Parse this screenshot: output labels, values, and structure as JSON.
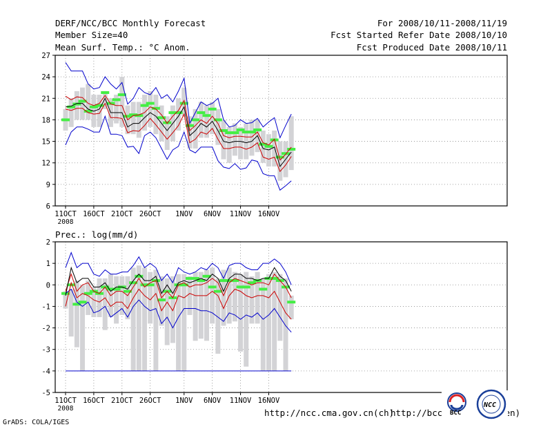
{
  "header": {
    "title": "DERF/NCC/BCC Monthly Forecast",
    "member_size": "Member Size=40",
    "variable": "Mean Surf. Temp.: °C Anom.",
    "period": "For 2008/10/11-2008/11/19",
    "started": "Fcst Started Refer Date 2008/10/10",
    "produced": "Fcst Produced Date 2008/10/11"
  },
  "footer": {
    "grads": "GrADS: COLA/IGES",
    "url1": "http://ncc.cma.gov.cn(ch)",
    "url2": "http://bcc.cma.gov.cn(en)",
    "logo_bcc": "BCC",
    "logo_ncc": "NCC"
  },
  "colors": {
    "envelope": "#0000cc",
    "spread": "#cc0000",
    "mean": "#000000",
    "box": "#d3d3d6",
    "median": "#44ee44",
    "grid": "#888888"
  },
  "chart_data": [
    {
      "type": "box",
      "title": "Mean Surf. Temp.: °C Anom.",
      "xlabel": "",
      "ylabel": "",
      "xlim": [
        1,
        40
      ],
      "ylim": [
        6,
        27
      ],
      "yticks": [
        6,
        9,
        12,
        15,
        18,
        21,
        24,
        27
      ],
      "xticks": [
        {
          "x": 1,
          "label": "11OCT"
        },
        {
          "x": 6,
          "label": "16OCT"
        },
        {
          "x": 11,
          "label": "21OCT"
        },
        {
          "x": 16,
          "label": "26OCT"
        },
        {
          "x": 22,
          "label": "1NOV"
        },
        {
          "x": 27,
          "label": "6NOV"
        },
        {
          "x": 32,
          "label": "11NOV"
        },
        {
          "x": 37,
          "label": "16NOV"
        }
      ],
      "year_label": "2008",
      "grid": "dotted",
      "max": [
        26,
        24.8,
        24.8,
        24.8,
        23,
        22.3,
        22.5,
        24,
        23,
        22.3,
        23.2,
        20.2,
        21,
        22.5,
        21.8,
        21.5,
        22.5,
        21,
        21.5,
        20.5,
        22,
        23.8,
        17.5,
        19,
        20.5,
        20,
        20.3,
        21,
        18,
        17,
        17.2,
        18,
        17.5,
        17.6,
        18.2,
        17,
        17.7,
        18.3,
        15.5,
        17.2,
        18.8
      ],
      "upper": [
        21.3,
        20.8,
        21.2,
        21.1,
        20.3,
        20,
        20.3,
        21.4,
        20.2,
        20,
        20,
        18,
        18.6,
        18.7,
        19,
        19.8,
        19.5,
        18.7,
        17.5,
        18.5,
        19.3,
        20.7,
        16.5,
        17.2,
        18,
        17.5,
        18.5,
        17.5,
        15.8,
        15.5,
        15.7,
        15.7,
        15.6,
        15.6,
        16.3,
        14.8,
        14.5,
        15.3,
        12.4,
        13.2,
        14.2
      ],
      "mean": [
        19.8,
        19.9,
        20.3,
        20.3,
        19.5,
        19.2,
        19.5,
        21,
        19,
        19,
        19,
        17,
        17.5,
        17.5,
        18.3,
        19,
        18.5,
        17.5,
        16.5,
        17.5,
        18.5,
        19.8,
        15.8,
        16.5,
        17.5,
        17,
        17.8,
        16.5,
        15,
        14.8,
        15,
        15,
        14.8,
        15,
        15.8,
        14,
        13.8,
        14.2,
        11.5,
        12.5,
        13.5
      ],
      "lower": [
        19.5,
        19.3,
        19.6,
        19.6,
        19,
        18.8,
        18.9,
        20.3,
        18.3,
        18.3,
        18.2,
        16.2,
        16.5,
        16.4,
        17.2,
        18.2,
        17.3,
        16.3,
        15.3,
        16.2,
        17.2,
        18.8,
        14.8,
        15.3,
        16.3,
        16,
        16.8,
        15.3,
        14,
        14,
        14.2,
        14.2,
        13.9,
        14.2,
        14.8,
        12.8,
        12.5,
        12.8,
        10.8,
        11.7,
        12.9
      ],
      "min": [
        14.5,
        16.3,
        17,
        17,
        16.7,
        16.3,
        16.3,
        18.5,
        16,
        16,
        15.8,
        14.2,
        14.3,
        13.3,
        15.8,
        16.3,
        15.5,
        14,
        12.5,
        13.8,
        14.3,
        16.3,
        13.8,
        13.4,
        14.2,
        14.2,
        14.2,
        12.3,
        11.4,
        11.2,
        11.9,
        11.1,
        11.3,
        12.4,
        12.2,
        10.5,
        10.2,
        10.2,
        8.2,
        8.8,
        9.5
      ],
      "boxes": [
        [
          16.5,
          19.5
        ],
        [
          17,
          21
        ],
        [
          18,
          22
        ],
        [
          18,
          22.5
        ],
        [
          18,
          23
        ],
        [
          17,
          21.5
        ],
        [
          17,
          21.5
        ],
        [
          19.5,
          22
        ],
        [
          17,
          21
        ],
        [
          17.5,
          21.5
        ],
        [
          17,
          24
        ],
        [
          16,
          20
        ],
        [
          16,
          20.5
        ],
        [
          15.5,
          20.5
        ],
        [
          16.5,
          21.5
        ],
        [
          17,
          22
        ],
        [
          16,
          21.5
        ],
        [
          15,
          20
        ],
        [
          13.8,
          18.5
        ],
        [
          15,
          20
        ],
        [
          16.5,
          21
        ],
        [
          18.5,
          22.5
        ],
        [
          14,
          18.5
        ],
        [
          14,
          19.5
        ],
        [
          15.5,
          20.5
        ],
        [
          15.5,
          20
        ],
        [
          16,
          20.5
        ],
        [
          14.5,
          19.5
        ],
        [
          12.5,
          18
        ],
        [
          12,
          17
        ],
        [
          13,
          17.5
        ],
        [
          12.5,
          17
        ],
        [
          12.5,
          17.5
        ],
        [
          13,
          18
        ],
        [
          13.5,
          18
        ],
        [
          12,
          16.5
        ],
        [
          11.5,
          16
        ],
        [
          11.5,
          16.5
        ],
        [
          9.5,
          15
        ],
        [
          10,
          15
        ],
        [
          11,
          18.5
        ]
      ],
      "median": [
        18,
        19.8,
        20.2,
        20.6,
        19.2,
        19.8,
        20,
        21.8,
        20.3,
        20.8,
        21.5,
        18.5,
        18.7,
        18.6,
        20,
        20.3,
        19.6,
        18.3,
        17.6,
        19,
        19,
        20.3,
        17.2,
        18,
        19,
        18.6,
        19.5,
        18,
        16.5,
        16.2,
        16.2,
        16.6,
        16.3,
        16.3,
        16.6,
        14.6,
        14.3,
        15.2,
        12.8,
        13.3,
        13.9
      ]
    },
    {
      "type": "box",
      "title": "Prec.: log(mm/d)",
      "xlabel": "",
      "ylabel": "",
      "xlim": [
        1,
        40
      ],
      "ylim": [
        -5,
        2
      ],
      "yticks": [
        -5,
        -4,
        -3,
        -2,
        -1,
        0,
        1,
        2
      ],
      "xticks": [
        {
          "x": 1,
          "label": "11OCT"
        },
        {
          "x": 6,
          "label": "16OCT"
        },
        {
          "x": 11,
          "label": "21OCT"
        },
        {
          "x": 16,
          "label": "26OCT"
        },
        {
          "x": 22,
          "label": "1NOV"
        },
        {
          "x": 27,
          "label": "6NOV"
        },
        {
          "x": 32,
          "label": "11NOV"
        },
        {
          "x": 37,
          "label": "16NOV"
        }
      ],
      "year_label": "2008",
      "grid": "dotted",
      "floor_line": -4,
      "max": [
        0.8,
        1.5,
        0.8,
        1,
        1,
        0.5,
        0.4,
        0.7,
        0.5,
        0.5,
        0.6,
        0.6,
        0.9,
        1.3,
        0.8,
        1,
        0.8,
        0.2,
        0.5,
        0.1,
        0.8,
        0.6,
        0.5,
        0.6,
        0.8,
        0.7,
        1,
        0.8,
        0.3,
        0.9,
        1,
        1,
        0.8,
        0.7,
        0.7,
        1,
        1,
        1.2,
        1,
        0.6,
        0
      ],
      "upper": [
        -0.3,
        0.5,
        -0.3,
        0,
        0.1,
        -0.3,
        -0.4,
        -0.1,
        -0.5,
        -0.3,
        -0.3,
        -0.5,
        -0.1,
        0.3,
        -0.1,
        0.1,
        0.2,
        -0.6,
        -0.3,
        -0.6,
        0,
        0.1,
        -0.1,
        0,
        0,
        0.1,
        0.3,
        0.1,
        -0.5,
        0.1,
        0.3,
        0.2,
        0.1,
        0,
        0.1,
        0.1,
        0,
        0.5,
        0.2,
        -0.1,
        -0.6
      ],
      "mean": [
        -0.5,
        0.8,
        0.1,
        0.3,
        0.3,
        -0.1,
        -0.1,
        0.1,
        -0.3,
        -0.1,
        -0.1,
        -0.2,
        0.2,
        0.5,
        0.2,
        0.2,
        0.4,
        -0.4,
        0,
        -0.4,
        0.1,
        0.2,
        0.1,
        0.2,
        0.3,
        0.2,
        0.5,
        0.3,
        -0.3,
        0.3,
        0.5,
        0.5,
        0.3,
        0.3,
        0.2,
        0.3,
        0.3,
        0.8,
        0.4,
        0.2,
        -0.3
      ],
      "lower": [
        -1,
        0.1,
        -0.6,
        -0.4,
        -0.5,
        -0.7,
        -0.8,
        -0.6,
        -1,
        -0.8,
        -0.8,
        -1.1,
        -0.6,
        -0.2,
        -0.5,
        -0.7,
        -0.4,
        -1.2,
        -0.8,
        -1.2,
        -0.5,
        -0.6,
        -0.4,
        -0.5,
        -0.5,
        -0.5,
        -0.3,
        -0.5,
        -1.1,
        -0.5,
        -0.2,
        -0.3,
        -0.5,
        -0.6,
        -0.5,
        -0.5,
        -0.6,
        -0.3,
        -0.8,
        -1.3,
        -1.6
      ],
      "min": [
        -0.4,
        -0.2,
        -0.8,
        -1,
        -0.8,
        -1.3,
        -1.2,
        -1,
        -1.5,
        -1.3,
        -1.1,
        -1.5,
        -1,
        -0.7,
        -1,
        -1.2,
        -1.1,
        -1.8,
        -1.5,
        -2,
        -1.5,
        -1.1,
        -1.1,
        -1.1,
        -1.2,
        -1.2,
        -1.3,
        -1.5,
        -1.7,
        -1.3,
        -1.4,
        -1.6,
        -1.4,
        -1.5,
        -1.3,
        -1.6,
        -1.4,
        -1.1,
        -1.5,
        -1.9,
        -2.2
      ],
      "boxes": [
        [
          -1.1,
          -0.3
        ],
        [
          -2.4,
          -0.2
        ],
        [
          -2.9,
          0.2
        ],
        [
          -4,
          0
        ],
        [
          -1.4,
          0.2
        ],
        [
          -1.5,
          -0.1
        ],
        [
          -1.5,
          0.3
        ],
        [
          -2.1,
          0.3
        ],
        [
          -1.5,
          0.5
        ],
        [
          -1.8,
          0.4
        ],
        [
          -1.4,
          0.4
        ],
        [
          -1.6,
          0.4
        ],
        [
          -4,
          0.8
        ],
        [
          -4,
          0.9
        ],
        [
          -4,
          0.8
        ],
        [
          -1.8,
          0.6
        ],
        [
          -4,
          0.7
        ],
        [
          -1.9,
          0.4
        ],
        [
          -2.8,
          0.3
        ],
        [
          -2.7,
          0.4
        ],
        [
          -4,
          0.5
        ],
        [
          -4,
          0.5
        ],
        [
          -1.4,
          0.4
        ],
        [
          -2.6,
          0.6
        ],
        [
          -2.5,
          0.6
        ],
        [
          -2.6,
          0.7
        ],
        [
          -1.8,
          0.8
        ],
        [
          -3.2,
          0.3
        ],
        [
          -1.9,
          0.7
        ],
        [
          -1.8,
          0.8
        ],
        [
          -1.7,
          0.6
        ],
        [
          -3.1,
          0.5
        ],
        [
          -3.8,
          0.6
        ],
        [
          -1.8,
          0.4
        ],
        [
          -1.8,
          0.6
        ],
        [
          -4,
          0.3
        ],
        [
          -4,
          0.5
        ],
        [
          -4,
          0.6
        ],
        [
          -2.6,
          0.5
        ],
        [
          -4,
          0.3
        ],
        [
          -1.6,
          -0.5
        ]
      ],
      "median": [
        -0.4,
        0,
        -0.9,
        -0.8,
        -0.4,
        -0.3,
        -0.4,
        -0.1,
        -0.2,
        -0.2,
        -0.1,
        -0.3,
        0.1,
        0.4,
        0,
        0,
        0.2,
        -0.7,
        -0.3,
        -0.6,
        0,
        0,
        0.3,
        0.3,
        0.2,
        0.4,
        -0.1,
        -0.3,
        0.2,
        0.2,
        0.2,
        -0.1,
        -0.1,
        0.1,
        0.2,
        -0.2,
        0.3,
        0.3,
        0.2,
        -0.1,
        -0.8
      ]
    }
  ]
}
